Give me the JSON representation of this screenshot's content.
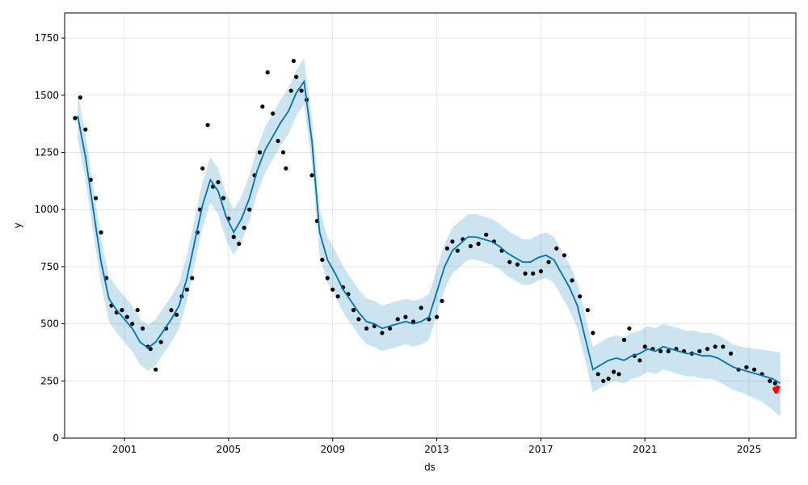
{
  "chart_data": {
    "type": "line",
    "title": "",
    "xlabel": "ds",
    "ylabel": "y",
    "xlim": [
      1998.7,
      2026.8
    ],
    "ylim": [
      0,
      1860
    ],
    "grid": true,
    "x_ticks": [
      {
        "value": 2001,
        "label": "2001"
      },
      {
        "value": 2005,
        "label": "2005"
      },
      {
        "value": 2009,
        "label": "2009"
      },
      {
        "value": 2013,
        "label": "2013"
      },
      {
        "value": 2017,
        "label": "2017"
      },
      {
        "value": 2021,
        "label": "2021"
      },
      {
        "value": 2025,
        "label": "2025"
      }
    ],
    "y_ticks": [
      {
        "value": 0,
        "label": "0"
      },
      {
        "value": 250,
        "label": "250"
      },
      {
        "value": 500,
        "label": "500"
      },
      {
        "value": 750,
        "label": "750"
      },
      {
        "value": 1000,
        "label": "1000"
      },
      {
        "value": 1250,
        "label": "1250"
      },
      {
        "value": 1500,
        "label": "1500"
      },
      {
        "value": 1750,
        "label": "1750"
      }
    ],
    "colors": {
      "forecast_line": "#0072B2",
      "uncertainty_band": "#0072B2",
      "observed_points": "#000000",
      "highlight_points": "#ff0000",
      "grid": "#e6e6e6"
    },
    "forecast": {
      "x": [
        1999.2,
        1999.5,
        1999.8,
        2000.1,
        2000.4,
        2000.7,
        2001.0,
        2001.3,
        2001.6,
        2001.9,
        2002.2,
        2002.5,
        2002.8,
        2003.1,
        2003.4,
        2003.7,
        2004.0,
        2004.3,
        2004.6,
        2004.9,
        2005.2,
        2005.5,
        2005.8,
        2006.1,
        2006.4,
        2006.7,
        2007.0,
        2007.3,
        2007.6,
        2007.9,
        2008.2,
        2008.5,
        2008.8,
        2009.1,
        2009.4,
        2009.7,
        2010.0,
        2010.3,
        2010.6,
        2010.9,
        2011.2,
        2011.5,
        2011.8,
        2012.1,
        2012.4,
        2012.7,
        2013.0,
        2013.3,
        2013.6,
        2013.9,
        2014.2,
        2014.5,
        2014.8,
        2015.1,
        2015.4,
        2015.7,
        2016.0,
        2016.3,
        2016.6,
        2016.9,
        2017.2,
        2017.5,
        2017.8,
        2018.1,
        2018.4,
        2018.7,
        2019.0,
        2019.3,
        2019.6,
        2019.9,
        2020.2,
        2020.5,
        2020.8,
        2021.1,
        2021.4,
        2021.7,
        2022.0,
        2022.3,
        2022.6,
        2022.9,
        2023.2,
        2023.5,
        2023.8,
        2024.1,
        2024.4,
        2024.7,
        2025.0,
        2025.3,
        2025.6,
        2025.9,
        2026.2
      ],
      "yhat": [
        1410,
        1230,
        1000,
        770,
        610,
        560,
        520,
        480,
        420,
        395,
        420,
        470,
        520,
        580,
        700,
        860,
        1020,
        1130,
        1080,
        970,
        900,
        960,
        1050,
        1170,
        1260,
        1320,
        1380,
        1430,
        1510,
        1560,
        1300,
        900,
        780,
        720,
        650,
        600,
        550,
        510,
        500,
        480,
        490,
        500,
        510,
        500,
        510,
        530,
        640,
        750,
        820,
        850,
        880,
        880,
        870,
        860,
        840,
        810,
        790,
        770,
        770,
        790,
        800,
        780,
        720,
        660,
        580,
        440,
        300,
        320,
        340,
        350,
        340,
        360,
        370,
        390,
        380,
        400,
        390,
        380,
        370,
        370,
        360,
        360,
        350,
        330,
        310,
        300,
        290,
        280,
        270,
        260,
        240
      ],
      "yhat_lower": [
        1310,
        1130,
        900,
        670,
        510,
        460,
        420,
        380,
        320,
        295,
        320,
        370,
        420,
        480,
        600,
        760,
        920,
        1030,
        980,
        870,
        800,
        860,
        950,
        1070,
        1160,
        1220,
        1280,
        1330,
        1410,
        1460,
        1200,
        800,
        680,
        620,
        550,
        500,
        450,
        410,
        400,
        380,
        390,
        400,
        410,
        400,
        410,
        430,
        540,
        650,
        720,
        750,
        780,
        780,
        770,
        760,
        740,
        710,
        690,
        670,
        670,
        690,
        700,
        680,
        620,
        560,
        480,
        340,
        200,
        220,
        240,
        250,
        240,
        260,
        270,
        290,
        280,
        300,
        290,
        280,
        270,
        270,
        260,
        260,
        250,
        230,
        210,
        200,
        185,
        170,
        150,
        125,
        95
      ],
      "yhat_upper": [
        1510,
        1330,
        1100,
        870,
        710,
        660,
        620,
        580,
        520,
        495,
        520,
        570,
        620,
        680,
        800,
        960,
        1120,
        1230,
        1180,
        1070,
        1000,
        1060,
        1150,
        1270,
        1360,
        1420,
        1480,
        1530,
        1610,
        1660,
        1400,
        1000,
        880,
        820,
        750,
        700,
        650,
        610,
        600,
        580,
        590,
        600,
        610,
        600,
        610,
        630,
        740,
        850,
        920,
        950,
        980,
        980,
        970,
        960,
        940,
        910,
        890,
        870,
        870,
        890,
        900,
        880,
        820,
        760,
        680,
        540,
        400,
        420,
        440,
        450,
        440,
        460,
        470,
        490,
        480,
        500,
        490,
        480,
        470,
        470,
        460,
        460,
        450,
        430,
        410,
        400,
        395,
        390,
        385,
        380,
        375
      ]
    },
    "observed": {
      "x": [
        1999.1,
        1999.3,
        1999.5,
        1999.7,
        1999.9,
        2000.1,
        2000.3,
        2000.5,
        2000.7,
        2000.9,
        2001.1,
        2001.3,
        2001.5,
        2001.7,
        2001.9,
        2002.0,
        2002.2,
        2002.4,
        2002.6,
        2002.8,
        2003.0,
        2003.2,
        2003.4,
        2003.6,
        2003.8,
        2003.9,
        2004.0,
        2004.2,
        2004.4,
        2004.6,
        2004.8,
        2005.0,
        2005.2,
        2005.4,
        2005.6,
        2005.8,
        2006.0,
        2006.2,
        2006.3,
        2006.5,
        2006.7,
        2006.9,
        2007.1,
        2007.2,
        2007.4,
        2007.5,
        2007.6,
        2007.8,
        2008.0,
        2008.2,
        2008.4,
        2008.6,
        2008.8,
        2009.0,
        2009.2,
        2009.4,
        2009.6,
        2009.8,
        2010.0,
        2010.3,
        2010.6,
        2010.9,
        2011.2,
        2011.5,
        2011.8,
        2012.1,
        2012.4,
        2012.7,
        2013.0,
        2013.2,
        2013.4,
        2013.6,
        2013.8,
        2014.0,
        2014.3,
        2014.6,
        2014.9,
        2015.2,
        2015.5,
        2015.8,
        2016.1,
        2016.4,
        2016.7,
        2017.0,
        2017.3,
        2017.6,
        2017.9,
        2018.2,
        2018.5,
        2018.8,
        2019.0,
        2019.2,
        2019.4,
        2019.6,
        2019.8,
        2020.0,
        2020.2,
        2020.4,
        2020.6,
        2020.8,
        2021.0,
        2021.3,
        2021.6,
        2021.9,
        2022.2,
        2022.5,
        2022.8,
        2023.1,
        2023.4,
        2023.7,
        2024.0,
        2024.3,
        2024.6,
        2024.9,
        2025.2,
        2025.5,
        2025.8,
        2026.0
      ],
      "y": [
        1400,
        1490,
        1350,
        1130,
        1050,
        900,
        700,
        580,
        550,
        560,
        530,
        500,
        560,
        480,
        400,
        390,
        300,
        420,
        480,
        560,
        540,
        620,
        650,
        700,
        900,
        1000,
        1180,
        1370,
        1100,
        1120,
        1050,
        960,
        880,
        850,
        920,
        1000,
        1150,
        1250,
        1450,
        1600,
        1420,
        1300,
        1250,
        1180,
        1520,
        1650,
        1580,
        1520,
        1480,
        1150,
        950,
        780,
        700,
        650,
        620,
        660,
        630,
        560,
        520,
        480,
        490,
        460,
        480,
        520,
        530,
        510,
        570,
        520,
        530,
        600,
        830,
        860,
        820,
        870,
        840,
        850,
        890,
        860,
        820,
        770,
        760,
        720,
        720,
        730,
        770,
        830,
        800,
        690,
        620,
        560,
        460,
        280,
        250,
        260,
        290,
        280,
        430,
        480,
        360,
        340,
        400,
        390,
        380,
        380,
        390,
        380,
        370,
        380,
        390,
        400,
        400,
        370,
        300,
        310,
        300,
        280,
        250,
        240
      ]
    },
    "highlight": {
      "x": [
        2026.0,
        2026.05,
        2026.1
      ],
      "y": [
        215,
        205,
        220
      ]
    }
  }
}
